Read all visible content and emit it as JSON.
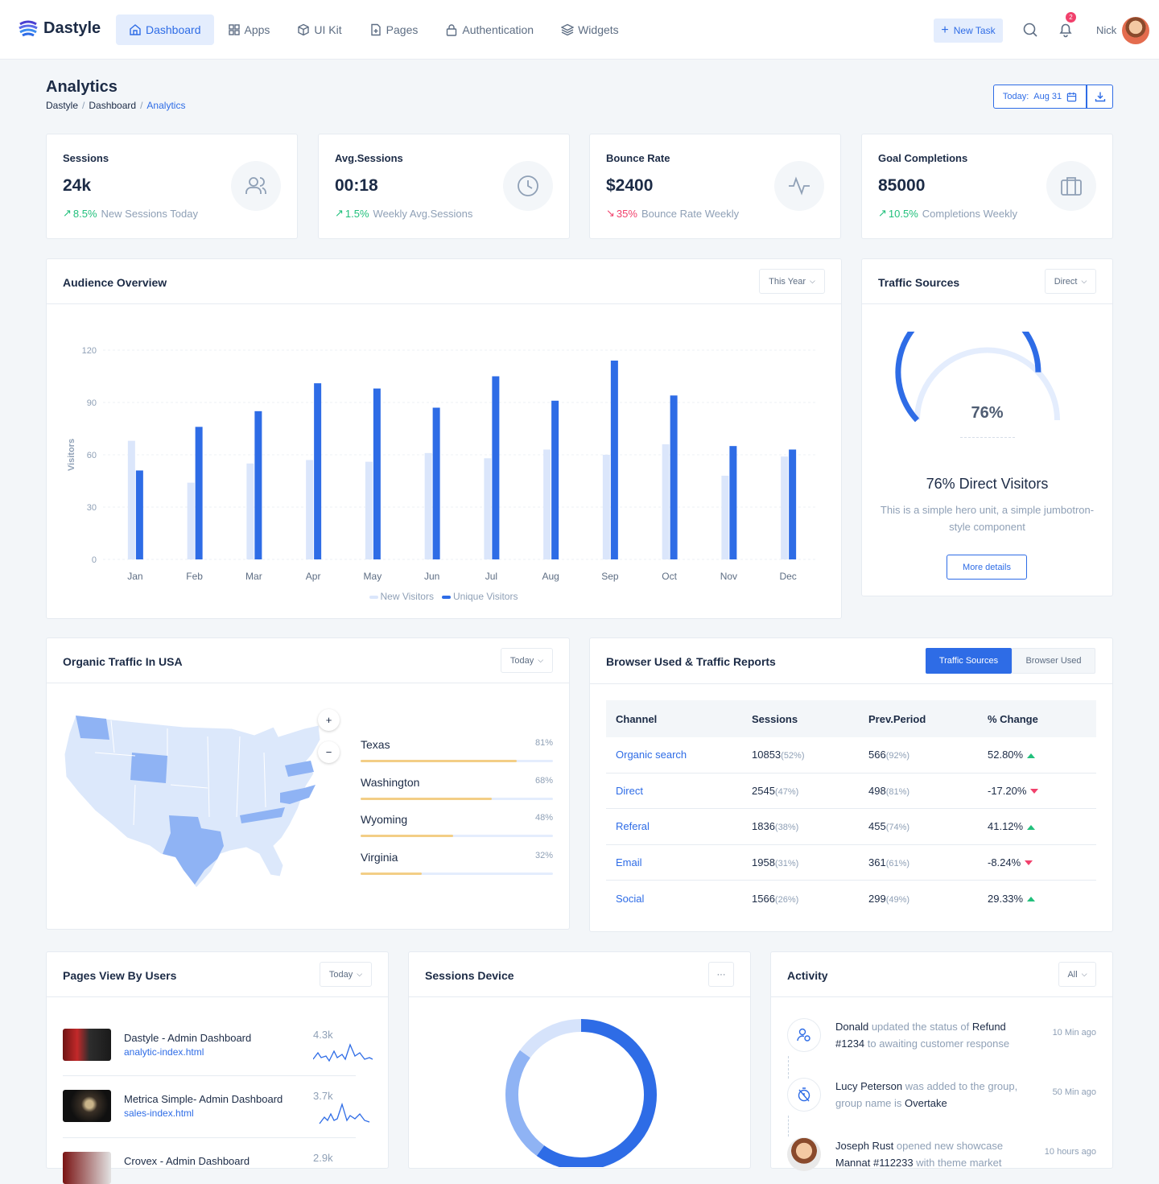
{
  "brand": {
    "name": "Dastyle"
  },
  "nav": {
    "items": [
      {
        "label": "Dashboard",
        "icon": "home-icon"
      },
      {
        "label": "Apps",
        "icon": "grid-icon"
      },
      {
        "label": "UI Kit",
        "icon": "box-icon"
      },
      {
        "label": "Pages",
        "icon": "file-plus-icon"
      },
      {
        "label": "Authentication",
        "icon": "lock-icon"
      },
      {
        "label": "Widgets",
        "icon": "layers-icon"
      }
    ],
    "new_task": "New Task",
    "notification_count": "2",
    "user": "Nick"
  },
  "header": {
    "title": "Analytics",
    "breadcrumb": [
      "Dastyle",
      "Dashboard",
      "Analytics"
    ],
    "date_label": "Today:",
    "date_value": "Aug 31"
  },
  "stats": [
    {
      "label": "Sessions",
      "value": "24k",
      "change": "8.5%",
      "trend": "up",
      "note": "New Sessions Today",
      "icon": "users-icon"
    },
    {
      "label": "Avg.Sessions",
      "value": "00:18",
      "change": "1.5%",
      "trend": "up",
      "note": "Weekly Avg.Sessions",
      "icon": "clock-icon"
    },
    {
      "label": "Bounce Rate",
      "value": "$2400",
      "change": "35%",
      "trend": "down",
      "note": "Bounce Rate Weekly",
      "icon": "activity-icon"
    },
    {
      "label": "Goal Completions",
      "value": "85000",
      "change": "10.5%",
      "trend": "up",
      "note": "Completions Weekly",
      "icon": "briefcase-icon"
    }
  ],
  "audience": {
    "title": "Audience Overview",
    "filter": "This Year"
  },
  "chart_data": {
    "type": "bar",
    "ylabel": "Visitors",
    "xlabel": "",
    "ylim": [
      0,
      120
    ],
    "yticks": [
      0,
      30,
      60,
      90,
      120
    ],
    "categories": [
      "Jan",
      "Feb",
      "Mar",
      "Apr",
      "May",
      "Jun",
      "Jul",
      "Aug",
      "Sep",
      "Oct",
      "Nov",
      "Dec"
    ],
    "series": [
      {
        "name": "New Visitors",
        "color": "#dbe6fb",
        "values": [
          68,
          44,
          55,
          57,
          56,
          61,
          58,
          63,
          60,
          66,
          48,
          59
        ]
      },
      {
        "name": "Unique Visitors",
        "color": "#2e6ce6",
        "values": [
          51,
          76,
          85,
          101,
          98,
          87,
          105,
          91,
          114,
          94,
          65,
          63
        ]
      }
    ],
    "legend_position": "bottom-center",
    "grid": true
  },
  "traffic_sources": {
    "title": "Traffic Sources",
    "filter": "Direct",
    "gauge_value": 76,
    "gauge_label": "76%",
    "headline": "76% Direct Visitors",
    "description": "This is a simple hero unit, a simple jumbotron-style component",
    "button": "More details"
  },
  "organic": {
    "title": "Organic Traffic In USA",
    "filter": "Today",
    "zoom_in": "+",
    "zoom_out": "−",
    "regions": [
      {
        "name": "Texas",
        "pct": "81%",
        "value": 81
      },
      {
        "name": "Washington",
        "pct": "68%",
        "value": 68
      },
      {
        "name": "Wyoming",
        "pct": "48%",
        "value": 48
      },
      {
        "name": "Virginia",
        "pct": "32%",
        "value": 32
      }
    ]
  },
  "browser": {
    "title": "Browser Used & Traffic Reports",
    "tabs": [
      "Traffic Sources",
      "Browser Used"
    ],
    "columns": [
      "Channel",
      "Sessions",
      "Prev.Period",
      "% Change"
    ],
    "rows": [
      {
        "channel": "Organic search",
        "sessions": "10853",
        "sessions_pct": "(52%)",
        "prev": "566",
        "prev_pct": "(92%)",
        "change": "52.80%",
        "trend": "up"
      },
      {
        "channel": "Direct",
        "sessions": "2545",
        "sessions_pct": "(47%)",
        "prev": "498",
        "prev_pct": "(81%)",
        "change": "-17.20%",
        "trend": "down"
      },
      {
        "channel": "Referal",
        "sessions": "1836",
        "sessions_pct": "(38%)",
        "prev": "455",
        "prev_pct": "(74%)",
        "change": "41.12%",
        "trend": "up"
      },
      {
        "channel": "Email",
        "sessions": "1958",
        "sessions_pct": "(31%)",
        "prev": "361",
        "prev_pct": "(61%)",
        "change": "-8.24%",
        "trend": "down"
      },
      {
        "channel": "Social",
        "sessions": "1566",
        "sessions_pct": "(26%)",
        "prev": "299",
        "prev_pct": "(49%)",
        "change": "29.33%",
        "trend": "up"
      }
    ]
  },
  "pages_view": {
    "title": "Pages View By Users",
    "filter": "Today",
    "items": [
      {
        "title": "Dastyle - Admin Dashboard",
        "link": "analytic-index.html",
        "count": "4.3k"
      },
      {
        "title": "Metrica Simple- Admin Dashboard",
        "link": "sales-index.html",
        "count": "3.7k"
      },
      {
        "title": "Crovex - Admin Dashboard",
        "link": "",
        "count": "2.9k"
      }
    ]
  },
  "sessions_device": {
    "title": "Sessions Device",
    "menu": "···",
    "segments": [
      {
        "value": 60,
        "color": "#2e6ce6"
      },
      {
        "value": 25,
        "color": "#8fb3f4"
      },
      {
        "value": 15,
        "color": "#d6e3fb"
      }
    ]
  },
  "activity": {
    "title": "Activity",
    "filter": "All",
    "items": [
      {
        "icon": "user-settings-icon",
        "parts": [
          [
            "b",
            "Donald"
          ],
          [
            "t",
            " updated the status of "
          ],
          [
            "b",
            "Refund #1234"
          ],
          [
            "t",
            " to awaiting customer response"
          ]
        ],
        "time": "10 Min ago"
      },
      {
        "icon": "timer-off-icon",
        "parts": [
          [
            "b",
            "Lucy Peterson"
          ],
          [
            "t",
            " was added to the group, group name is "
          ],
          [
            "b",
            "Overtake"
          ]
        ],
        "time": "50 Min ago"
      },
      {
        "icon": "avatar",
        "parts": [
          [
            "b",
            "Joseph Rust"
          ],
          [
            "t",
            " opened new showcase "
          ],
          [
            "b",
            "Mannat #112233"
          ],
          [
            "t",
            " with theme market"
          ]
        ],
        "time": "10 hours ago"
      }
    ]
  }
}
